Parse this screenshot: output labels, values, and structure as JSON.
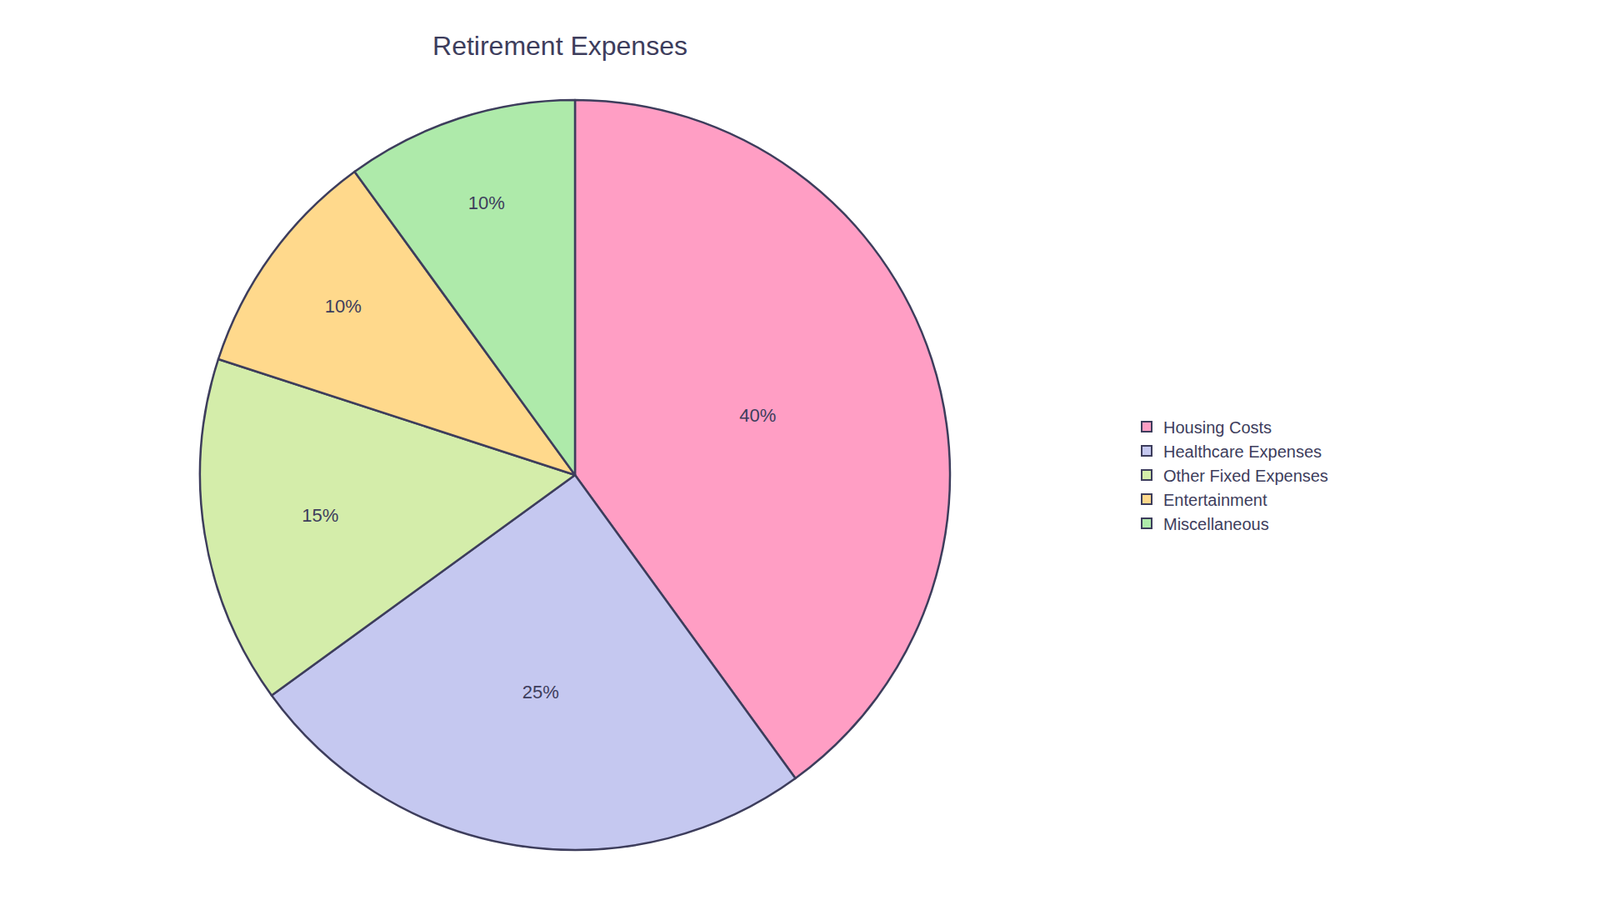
{
  "chart_data": {
    "type": "pie",
    "title": "Retirement Expenses",
    "categories": [
      "Housing Costs",
      "Healthcare Expenses",
      "Other Fixed Expenses",
      "Entertainment",
      "Miscellaneous"
    ],
    "values": [
      40,
      25,
      15,
      10,
      10
    ],
    "value_labels": [
      "40%",
      "25%",
      "15%",
      "10%",
      "10%"
    ],
    "colors": [
      "#FF9EC4",
      "#C5C8F0",
      "#D4EDAA",
      "#FFD98C",
      "#AEEAAA"
    ],
    "data_labels": true,
    "legend": "right"
  }
}
